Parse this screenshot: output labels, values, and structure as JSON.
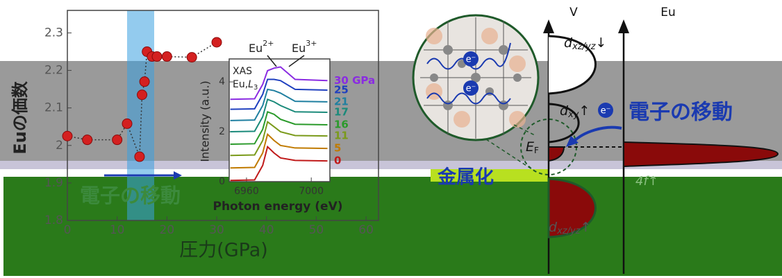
{
  "chart_data": [
    {
      "type": "scatter",
      "x_label": "圧力(GPa)",
      "y_label": "Euの価数",
      "x": [
        0,
        4,
        10,
        12,
        14.5,
        15,
        15.5,
        16,
        17,
        18,
        20,
        25,
        30
      ],
      "values": [
        2.025,
        2.015,
        2.015,
        2.058,
        1.97,
        2.135,
        2.17,
        2.25,
        2.237,
        2.237,
        2.237,
        2.235,
        2.275
      ],
      "color": "#d42020",
      "xlim": [
        0,
        62.5
      ],
      "ylim": [
        1.8,
        2.36
      ],
      "xticks": [
        0,
        10,
        20,
        30,
        40,
        50,
        60
      ],
      "yticks": [
        1.8,
        1.9,
        2.0,
        2.1,
        2.2,
        2.3
      ]
    },
    {
      "type": "line",
      "x_label": "Photon energy (eV)",
      "y_label": "Intensity (a.u.)",
      "annotations": {
        "method": "XAS",
        "edge": {
          "element": "Eu,",
          "letter": "L",
          "sub": "3"
        },
        "peak1": {
          "base": "Eu",
          "sup": "2+"
        },
        "peak2": {
          "base": "Eu",
          "sup": "3+"
        }
      },
      "x": [
        6950,
        6965,
        6970,
        6973,
        6977,
        6981,
        6990,
        7010
      ],
      "series": [
        {
          "name": "30 GPa",
          "color": "#8a2be2",
          "values": [
            3.3,
            3.32,
            3.9,
            4.45,
            4.55,
            4.6,
            4.1,
            4.05
          ]
        },
        {
          "name": "25",
          "color": "#1f3fbf",
          "values": [
            2.9,
            2.92,
            3.5,
            4.1,
            4.1,
            4.05,
            3.7,
            3.67
          ]
        },
        {
          "name": "21",
          "color": "#1f7fa0",
          "values": [
            2.45,
            2.47,
            3.05,
            3.7,
            3.65,
            3.55,
            3.22,
            3.2
          ]
        },
        {
          "name": "17",
          "color": "#1a8a7a",
          "values": [
            2.0,
            2.02,
            2.6,
            3.3,
            3.2,
            3.05,
            2.8,
            2.78
          ]
        },
        {
          "name": "16",
          "color": "#2a9a2a",
          "values": [
            1.5,
            1.52,
            2.1,
            2.8,
            2.7,
            2.5,
            2.3,
            2.28
          ]
        },
        {
          "name": "11",
          "color": "#7a9a1a",
          "values": [
            1.05,
            1.07,
            1.65,
            2.4,
            2.2,
            2.0,
            1.85,
            1.83
          ]
        },
        {
          "name": "5",
          "color": "#c07a00",
          "values": [
            0.55,
            0.57,
            1.15,
            1.9,
            1.65,
            1.45,
            1.35,
            1.33
          ]
        },
        {
          "name": "0",
          "color": "#c01a1a",
          "values": [
            0.05,
            0.07,
            0.65,
            1.4,
            1.15,
            0.95,
            0.85,
            0.83
          ]
        }
      ],
      "xlim": [
        6949.3,
        7011.5
      ],
      "ylim": [
        0,
        4.92
      ],
      "xticks": [
        6960,
        7000
      ],
      "yticks": [
        0,
        2,
        4
      ]
    }
  ],
  "diagram": {
    "v_axis": "V",
    "eu_axis": "Eu",
    "electron": "e⁻",
    "d_upper": {
      "base": "d",
      "sub": "xz/yz",
      "arrow": "↓"
    },
    "d_xy": {
      "base": "d",
      "sub": "xy",
      "arrow": "↑"
    },
    "d_lower": {
      "base": "d",
      "sub": "xz/yz",
      "arrow": "↑"
    },
    "fermi": {
      "base": "E",
      "sub": "F"
    },
    "f_band": "4f↑",
    "transfer_right": "電子の移動",
    "transfer_left": "電子の移動",
    "metallization": "金属化"
  }
}
